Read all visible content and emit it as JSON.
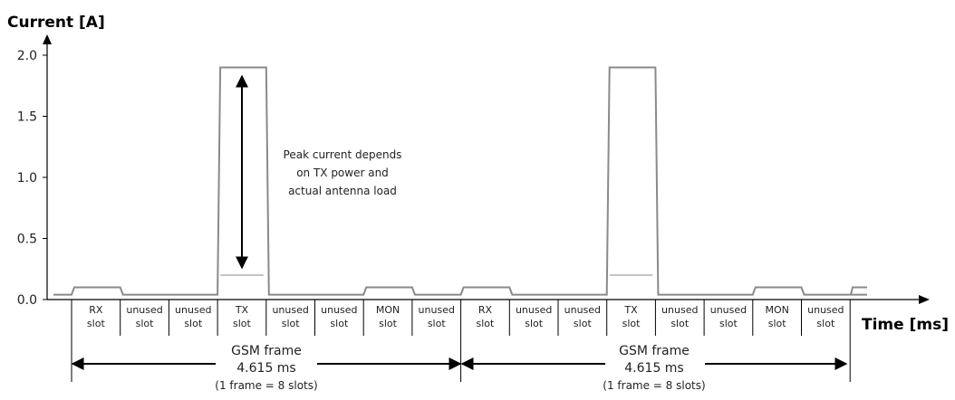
{
  "chart_data": {
    "type": "line",
    "ylabel": "Current [A]",
    "xlabel": "Time [ms]",
    "ylim": [
      0,
      2.0
    ],
    "yticks": [
      "0.0",
      "0.5",
      "1.0",
      "1.5",
      "2.0"
    ],
    "grid": false,
    "slots": [
      {
        "name": "RX",
        "sub": "slot",
        "current": 0.1
      },
      {
        "name": "unused",
        "sub": "slot",
        "current": 0.04
      },
      {
        "name": "unused",
        "sub": "slot",
        "current": 0.04
      },
      {
        "name": "TX",
        "sub": "slot",
        "current": 1.9,
        "low_current": 0.2
      },
      {
        "name": "unused",
        "sub": "slot",
        "current": 0.04
      },
      {
        "name": "unused",
        "sub": "slot",
        "current": 0.04
      },
      {
        "name": "MON",
        "sub": "slot",
        "current": 0.1
      },
      {
        "name": "unused",
        "sub": "slot",
        "current": 0.04
      },
      {
        "name": "RX",
        "sub": "slot",
        "current": 0.1
      },
      {
        "name": "unused",
        "sub": "slot",
        "current": 0.04
      },
      {
        "name": "unused",
        "sub": "slot",
        "current": 0.04
      },
      {
        "name": "TX",
        "sub": "slot",
        "current": 1.9,
        "low_current": 0.2
      },
      {
        "name": "unused",
        "sub": "slot",
        "current": 0.04
      },
      {
        "name": "unused",
        "sub": "slot",
        "current": 0.04
      },
      {
        "name": "MON",
        "sub": "slot",
        "current": 0.1
      },
      {
        "name": "unused",
        "sub": "slot",
        "current": 0.04
      }
    ],
    "baseline_current": 0.04,
    "annotation": [
      "Peak current depends",
      "on TX power and",
      "actual antenna load"
    ],
    "frames": [
      {
        "label": "GSM frame",
        "duration": "4.615 ms",
        "note": "(1 frame = 8 slots)"
      },
      {
        "label": "GSM frame",
        "duration": "4.615 ms",
        "note": "(1 frame = 8 slots)"
      }
    ],
    "colors": {
      "trace": "#8a8a8a",
      "axis": "#000000",
      "low_trace": "#c4c4c4"
    }
  }
}
